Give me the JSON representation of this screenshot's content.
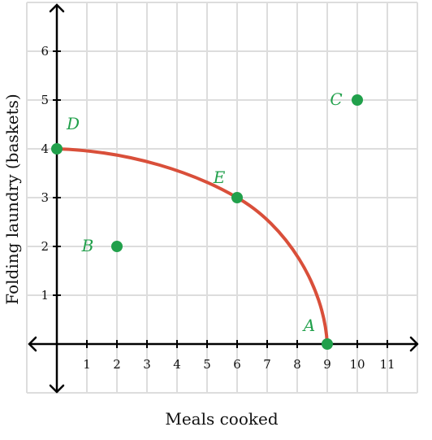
{
  "chart_data": {
    "type": "scatter",
    "xlabel": "Meals cooked",
    "ylabel": "Folding laundry (baskets)",
    "xlim": [
      -1,
      12
    ],
    "ylim": [
      -1,
      7
    ],
    "x_ticks": [
      1,
      2,
      3,
      4,
      5,
      6,
      7,
      8,
      9,
      10,
      11
    ],
    "y_ticks": [
      1,
      2,
      3,
      4,
      5,
      6
    ],
    "grid": true,
    "curve": {
      "description": "production possibilities frontier",
      "points": [
        [
          0,
          4
        ],
        [
          6,
          3
        ],
        [
          9,
          0
        ]
      ],
      "color": "#d94f3a"
    },
    "points": [
      {
        "label": "A",
        "x": 9,
        "y": 0
      },
      {
        "label": "B",
        "x": 2,
        "y": 2
      },
      {
        "label": "C",
        "x": 10,
        "y": 5
      },
      {
        "label": "D",
        "x": 0,
        "y": 4
      },
      {
        "label": "E",
        "x": 6,
        "y": 3
      }
    ],
    "point_color": "#21a04b",
    "grid_color": "#dddddd"
  }
}
